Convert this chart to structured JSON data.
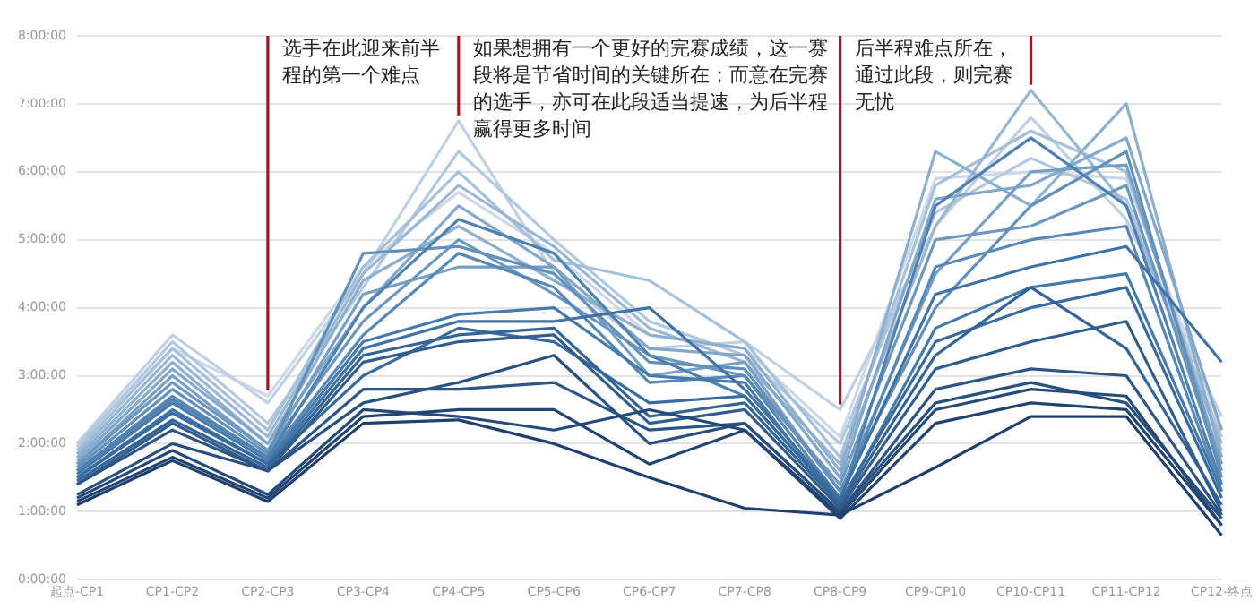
{
  "chart_data": {
    "type": "line",
    "categories": [
      "起点-CP1",
      "CP1-CP2",
      "CP2-CP3",
      "CP3-CP4",
      "CP4-CP5",
      "CP5-CP6",
      "CP6-CP7",
      "CP7-CP8",
      "CP8-CP9",
      "CP9-CP10",
      "CP10-CP11",
      "CP11-CP12",
      "CP12-终点"
    ],
    "ylim": [
      0,
      8
    ],
    "yticks": [
      {
        "value": 0,
        "label": "0:00:00"
      },
      {
        "value": 1,
        "label": "1:00:00"
      },
      {
        "value": 2,
        "label": "2:00:00"
      },
      {
        "value": 3,
        "label": "3:00:00"
      },
      {
        "value": 4,
        "label": "4:00:00"
      },
      {
        "value": 5,
        "label": "5:00:00"
      },
      {
        "value": 6,
        "label": "6:00:00"
      },
      {
        "value": 7,
        "label": "7:00:00"
      },
      {
        "value": 8,
        "label": "8:00:00"
      }
    ],
    "grid": "y",
    "legend": false,
    "ref_lines": [
      {
        "axis": "x",
        "value": "CP2-CP3",
        "label": "选手在此迎来前半程的第一个难点",
        "color": "#a31621"
      },
      {
        "axis": "x",
        "value": "CP4-CP5",
        "label": "如果想拥有一个更好的完赛成绩，这一赛段将是节省时间的关键所在；而意在完赛的选手，亦可在此段适当提速，为后半程赢得更多时间",
        "color": "#a31621"
      },
      {
        "axis": "x",
        "value": "CP8-CP9",
        "label": "后半程难点所在，通过此段，则完赛无忧",
        "color": "#a31621"
      },
      {
        "axis": "x",
        "value": "CP10-CP11",
        "label": null,
        "color": "#a31621"
      }
    ],
    "series": [
      {
        "color": "#1f3f6e",
        "values": [
          1.1,
          1.75,
          1.15,
          2.3,
          2.35,
          2.0,
          1.5,
          1.05,
          0.95,
          1.65,
          2.4,
          2.4,
          0.65
        ]
      },
      {
        "color": "#23446f",
        "values": [
          1.15,
          1.8,
          1.2,
          2.4,
          2.5,
          2.5,
          1.7,
          2.2,
          0.9,
          2.3,
          2.6,
          2.5,
          0.8
        ]
      },
      {
        "color": "#264a78",
        "values": [
          1.2,
          1.9,
          1.25,
          2.5,
          2.4,
          2.2,
          2.5,
          2.2,
          0.95,
          2.5,
          2.8,
          2.7,
          0.8
        ]
      },
      {
        "color": "#29507f",
        "values": [
          1.25,
          2.0,
          1.6,
          2.6,
          2.9,
          3.3,
          2.0,
          2.3,
          1.0,
          2.6,
          2.9,
          2.6,
          0.9
        ]
      },
      {
        "color": "#2d5686",
        "values": [
          1.4,
          2.2,
          1.6,
          2.8,
          2.8,
          2.9,
          2.2,
          2.3,
          1.0,
          2.8,
          3.1,
          3.0,
          0.95
        ]
      },
      {
        "color": "#305d8e",
        "values": [
          1.4,
          2.3,
          1.6,
          3.2,
          3.5,
          3.6,
          2.3,
          2.5,
          1.05,
          3.1,
          3.5,
          3.8,
          1.0
        ]
      },
      {
        "color": "#346496",
        "values": [
          1.45,
          2.35,
          1.65,
          3.3,
          3.6,
          3.7,
          2.4,
          2.6,
          1.1,
          3.3,
          4.3,
          3.4,
          1.1
        ]
      },
      {
        "color": "#386b9e",
        "values": [
          1.5,
          2.45,
          1.7,
          3.0,
          3.7,
          3.5,
          2.6,
          2.7,
          1.15,
          3.5,
          4.0,
          4.3,
          1.2
        ]
      },
      {
        "color": "#3f73a6",
        "values": [
          1.5,
          2.5,
          1.7,
          3.4,
          3.8,
          3.8,
          4.0,
          2.8,
          1.2,
          4.2,
          4.6,
          4.9,
          3.2
        ]
      },
      {
        "color": "#467aab",
        "values": [
          1.55,
          2.6,
          1.75,
          3.5,
          3.9,
          4.0,
          3.0,
          2.9,
          1.1,
          3.7,
          4.3,
          4.5,
          1.3
        ]
      },
      {
        "color": "#4e81b0",
        "values": [
          1.6,
          2.65,
          1.8,
          4.0,
          5.3,
          4.8,
          3.3,
          2.7,
          1.15,
          5.5,
          6.5,
          5.5,
          1.4
        ]
      },
      {
        "color": "#5888b5",
        "values": [
          1.6,
          2.7,
          1.8,
          3.6,
          4.8,
          4.3,
          2.9,
          3.0,
          1.2,
          4.6,
          5.0,
          5.2,
          1.3
        ]
      },
      {
        "color": "#6290ba",
        "values": [
          1.65,
          2.8,
          1.85,
          4.8,
          4.9,
          4.5,
          3.2,
          3.1,
          1.3,
          4.0,
          5.5,
          6.3,
          1.5
        ]
      },
      {
        "color": "#6c97bf",
        "values": [
          1.7,
          2.9,
          1.9,
          3.8,
          5.0,
          4.2,
          3.3,
          3.0,
          1.4,
          5.0,
          5.2,
          5.8,
          1.6
        ]
      },
      {
        "color": "#779fc4",
        "values": [
          1.7,
          3.0,
          1.9,
          4.2,
          4.6,
          4.6,
          3.0,
          3.2,
          1.3,
          4.5,
          6.0,
          6.1,
          1.7
        ]
      },
      {
        "color": "#82a7c9",
        "values": [
          1.75,
          3.1,
          2.0,
          4.0,
          5.5,
          4.6,
          3.4,
          3.3,
          1.5,
          5.6,
          5.8,
          6.5,
          2.2
        ]
      },
      {
        "color": "#8dafce",
        "values": [
          1.8,
          3.2,
          2.0,
          4.4,
          5.2,
          4.4,
          3.6,
          3.4,
          1.6,
          6.3,
          5.5,
          7.0,
          1.8
        ]
      },
      {
        "color": "#99b7d3",
        "values": [
          1.85,
          3.3,
          2.1,
          4.5,
          5.8,
          4.9,
          3.7,
          3.2,
          1.7,
          5.2,
          7.2,
          5.5,
          2.0
        ]
      },
      {
        "color": "#a5c0d9",
        "values": [
          1.9,
          3.4,
          2.2,
          4.6,
          6.0,
          4.7,
          4.4,
          3.5,
          1.8,
          5.8,
          6.6,
          6.0,
          1.9
        ]
      },
      {
        "color": "#b2c8de",
        "values": [
          1.95,
          3.5,
          2.3,
          4.3,
          6.3,
          5.0,
          3.8,
          3.3,
          2.0,
          5.4,
          6.2,
          5.6,
          2.1
        ]
      },
      {
        "color": "#bfd0e4",
        "values": [
          2.0,
          3.6,
          2.6,
          4.5,
          6.75,
          4.5,
          3.4,
          3.5,
          2.5,
          5.2,
          6.8,
          5.3,
          2.4
        ]
      },
      {
        "color": "#ccd8ea",
        "values": [
          2.0,
          3.4,
          2.7,
          4.6,
          5.7,
          4.8,
          3.6,
          3.4,
          2.1,
          5.9,
          6.0,
          5.9,
          2.2
        ]
      }
    ]
  }
}
